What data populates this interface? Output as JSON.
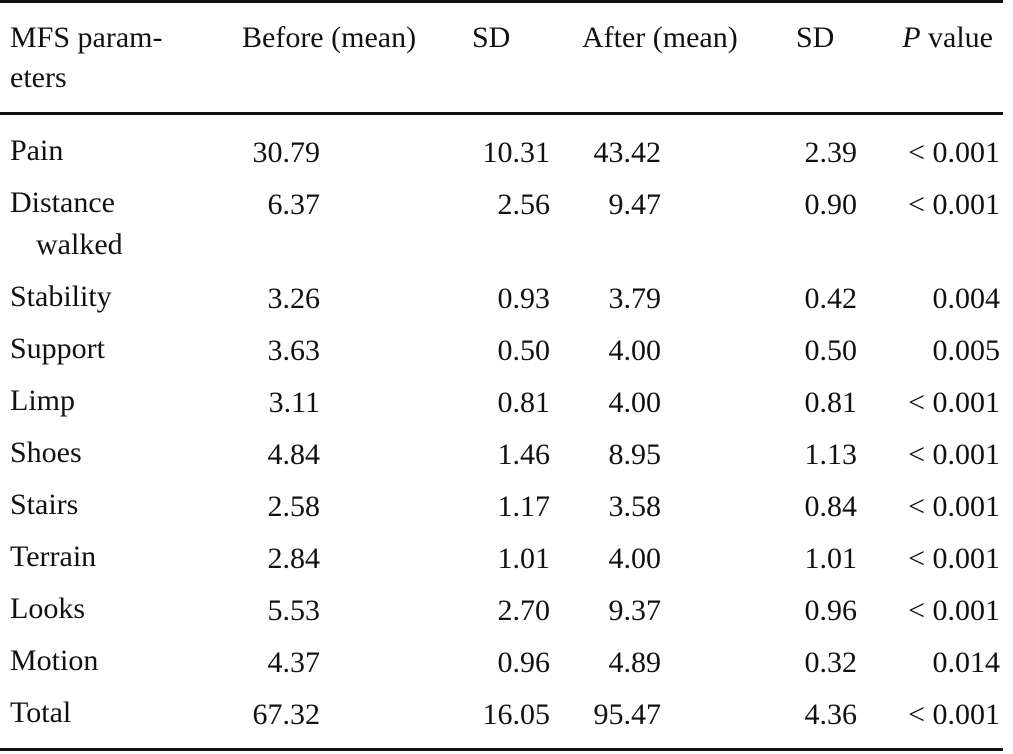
{
  "table": {
    "headers": {
      "parameter": "MFS param-",
      "parameter_cont": "eters",
      "before": "Before (mean)",
      "sd1": "SD",
      "after": "After (mean)",
      "sd2": "SD",
      "p_italic": "P",
      "p_rest": " value"
    },
    "rows": [
      {
        "name": "Pain",
        "name2": "",
        "before": "30.79",
        "sd1": "10.31",
        "after": "43.42",
        "sd2": "2.39",
        "p": "< 0.001"
      },
      {
        "name": "Distance",
        "name2": "walked",
        "before": "6.37",
        "sd1": "2.56",
        "after": "9.47",
        "sd2": "0.90",
        "p": "< 0.001"
      },
      {
        "name": "Stability",
        "name2": "",
        "before": "3.26",
        "sd1": "0.93",
        "after": "3.79",
        "sd2": "0.42",
        "p": "0.004"
      },
      {
        "name": "Support",
        "name2": "",
        "before": "3.63",
        "sd1": "0.50",
        "after": "4.00",
        "sd2": "0.50",
        "p": "0.005"
      },
      {
        "name": "Limp",
        "name2": "",
        "before": "3.11",
        "sd1": "0.81",
        "after": "4.00",
        "sd2": "0.81",
        "p": "< 0.001"
      },
      {
        "name": "Shoes",
        "name2": "",
        "before": "4.84",
        "sd1": "1.46",
        "after": "8.95",
        "sd2": "1.13",
        "p": "< 0.001"
      },
      {
        "name": "Stairs",
        "name2": "",
        "before": "2.58",
        "sd1": "1.17",
        "after": "3.58",
        "sd2": "0.84",
        "p": "< 0.001"
      },
      {
        "name": "Terrain",
        "name2": "",
        "before": "2.84",
        "sd1": "1.01",
        "after": "4.00",
        "sd2": "1.01",
        "p": "< 0.001"
      },
      {
        "name": "Looks",
        "name2": "",
        "before": "5.53",
        "sd1": "2.70",
        "after": "9.37",
        "sd2": "0.96",
        "p": "< 0.001"
      },
      {
        "name": "Motion",
        "name2": "",
        "before": "4.37",
        "sd1": "0.96",
        "after": "4.89",
        "sd2": "0.32",
        "p": "0.014"
      },
      {
        "name": "Total",
        "name2": "",
        "before": "67.32",
        "sd1": "16.05",
        "after": "95.47",
        "sd2": "4.36",
        "p": "< 0.001"
      }
    ]
  }
}
